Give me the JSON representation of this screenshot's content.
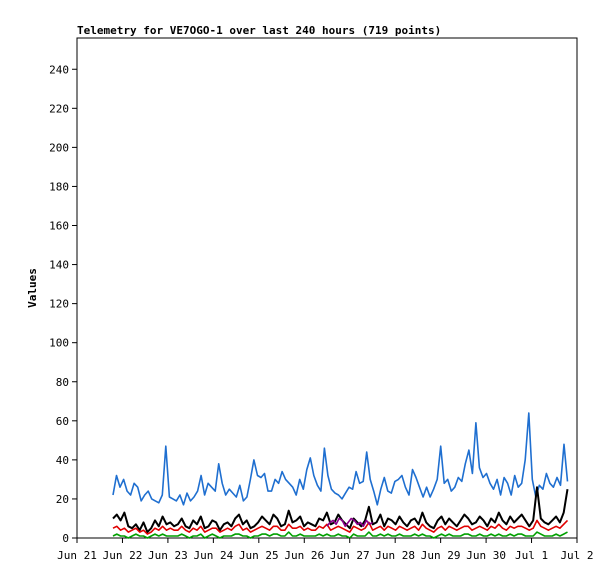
{
  "chart_data": {
    "type": "line",
    "title": "Telemetry for VE7OGO-1 over last 240 hours (719 points)",
    "xlabel": "",
    "ylabel": "Values",
    "ylim": [
      0,
      256
    ],
    "yticks": [
      0,
      20,
      40,
      60,
      80,
      100,
      120,
      140,
      160,
      180,
      200,
      220,
      240
    ],
    "xlim": [
      "Jun 21",
      "Jul 2"
    ],
    "xticks": [
      "Jun 21",
      "Jun 22",
      "Jun 23",
      "Jun 24",
      "Jun 25",
      "Jun 26",
      "Jun 27",
      "Jun 28",
      "Jun 29",
      "Jun 30",
      "Jul 1",
      "Jul 2"
    ],
    "data_start": "Jun 21 19:00",
    "data_end": "Jul 1 19:00",
    "grid": false,
    "legend": "none",
    "series": [
      {
        "color": "#1f6fd0",
        "values": [
          22,
          32,
          26,
          30,
          24,
          22,
          28,
          26,
          19,
          22,
          24,
          20,
          19,
          18,
          22,
          47,
          21,
          20,
          19,
          22,
          17,
          23,
          19,
          21,
          24,
          32,
          22,
          28,
          26,
          24,
          38,
          28,
          22,
          25,
          23,
          21,
          27,
          19,
          21,
          30,
          40,
          32,
          31,
          33,
          24,
          24,
          30,
          28,
          34,
          30,
          28,
          26,
          22,
          30,
          25,
          35,
          41,
          32,
          27,
          24,
          46,
          32,
          25,
          23,
          22,
          20,
          23,
          26,
          25,
          34,
          28,
          29,
          44,
          30,
          24,
          17,
          25,
          31,
          24,
          23,
          29,
          30,
          32,
          26,
          22,
          35,
          31,
          26,
          21,
          26,
          21,
          25,
          30,
          47,
          28,
          30,
          24,
          26,
          31,
          29,
          38,
          45,
          33,
          59,
          36,
          31,
          33,
          28,
          25,
          30,
          22,
          31,
          28,
          22,
          32,
          26,
          28,
          40,
          64,
          30,
          21,
          27,
          25,
          33,
          28,
          26,
          31,
          27,
          48,
          29
        ]
      },
      {
        "color": "#000000",
        "values": [
          10,
          12,
          9,
          13,
          6,
          5,
          7,
          4,
          8,
          3,
          5,
          9,
          6,
          11,
          7,
          8,
          6,
          7,
          10,
          6,
          5,
          9,
          7,
          11,
          5,
          6,
          9,
          8,
          4,
          7,
          8,
          6,
          10,
          12,
          7,
          9,
          5,
          6,
          8,
          11,
          9,
          7,
          12,
          10,
          6,
          7,
          14,
          8,
          9,
          11,
          6,
          8,
          7,
          6,
          10,
          9,
          13,
          7,
          8,
          12,
          9,
          7,
          5,
          10,
          8,
          6,
          9,
          16,
          7,
          8,
          12,
          6,
          10,
          9,
          7,
          11,
          8,
          6,
          9,
          10,
          7,
          13,
          8,
          6,
          5,
          9,
          11,
          7,
          10,
          8,
          6,
          9,
          12,
          10,
          7,
          8,
          11,
          9,
          6,
          10,
          8,
          13,
          9,
          7,
          11,
          8,
          10,
          12,
          9,
          6,
          9,
          26,
          10,
          8,
          7,
          9,
          11,
          8,
          13,
          25
        ]
      },
      {
        "color": "#e00000",
        "values": [
          5,
          6,
          4,
          5,
          3,
          4,
          5,
          3,
          4,
          2,
          3,
          5,
          4,
          6,
          4,
          5,
          4,
          4,
          6,
          4,
          3,
          5,
          4,
          6,
          3,
          4,
          5,
          5,
          3,
          4,
          5,
          4,
          6,
          7,
          4,
          5,
          3,
          4,
          5,
          6,
          5,
          4,
          6,
          6,
          4,
          4,
          7,
          5,
          5,
          6,
          4,
          5,
          4,
          4,
          6,
          5,
          7,
          4,
          5,
          6,
          5,
          4,
          3,
          6,
          5,
          4,
          5,
          8,
          4,
          5,
          6,
          4,
          6,
          5,
          4,
          6,
          5,
          4,
          5,
          6,
          4,
          7,
          5,
          4,
          3,
          5,
          6,
          4,
          6,
          5,
          4,
          5,
          6,
          6,
          4,
          5,
          6,
          5,
          4,
          6,
          5,
          7,
          5,
          4,
          6,
          5,
          6,
          6,
          5,
          4,
          5,
          9,
          6,
          5,
          4,
          5,
          6,
          5,
          7,
          9
        ]
      },
      {
        "color": "#00a000",
        "values": [
          1,
          2,
          1,
          1,
          0,
          1,
          2,
          1,
          1,
          0,
          1,
          2,
          1,
          2,
          1,
          1,
          1,
          1,
          2,
          1,
          0,
          1,
          1,
          2,
          0,
          1,
          2,
          1,
          0,
          1,
          1,
          1,
          2,
          2,
          1,
          1,
          0,
          1,
          1,
          2,
          2,
          1,
          2,
          2,
          1,
          1,
          3,
          1,
          1,
          2,
          1,
          1,
          1,
          1,
          2,
          1,
          2,
          1,
          1,
          2,
          1,
          1,
          0,
          2,
          1,
          1,
          1,
          3,
          1,
          1,
          2,
          1,
          2,
          1,
          1,
          2,
          1,
          1,
          1,
          2,
          1,
          2,
          1,
          1,
          0,
          1,
          2,
          1,
          2,
          1,
          1,
          1,
          2,
          2,
          1,
          1,
          2,
          1,
          1,
          2,
          1,
          2,
          1,
          1,
          2,
          1,
          2,
          2,
          1,
          1,
          1,
          3,
          2,
          1,
          1,
          1,
          2,
          1,
          2,
          3
        ]
      },
      {
        "color": "#8b008b",
        "x_from": "Jun 26 12:00",
        "x_to": "Jun 27 12:00",
        "values": [
          6,
          8,
          9,
          7,
          10,
          9,
          6,
          8,
          10,
          9,
          7,
          8,
          6,
          9,
          7,
          8
        ]
      }
    ]
  }
}
